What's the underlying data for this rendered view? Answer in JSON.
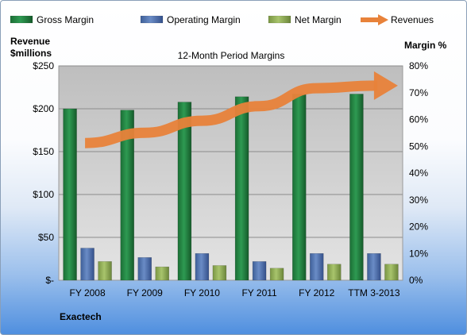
{
  "chart_data": {
    "type": "bar",
    "title": "12-Month Period Margins",
    "company": "Exactech",
    "categories": [
      "FY 2008",
      "FY 2009",
      "FY 2010",
      "FY 2011",
      "FY 2012",
      "TTM 3-2013"
    ],
    "series": [
      {
        "name": "Gross Margin",
        "axis": "right",
        "values": [
          64,
          63.5,
          66.5,
          68.5,
          69.5,
          69.5
        ],
        "color": "#1e7a3c"
      },
      {
        "name": "Operating Margin",
        "axis": "right",
        "values": [
          12,
          8.5,
          10,
          7,
          10,
          10
        ],
        "color": "#4f73b0"
      },
      {
        "name": "Net Margin",
        "axis": "right",
        "values": [
          7,
          5,
          5.5,
          4.5,
          6,
          6
        ],
        "color": "#8fae52"
      }
    ],
    "revenues": {
      "name": "Revenues",
      "color": "#e8823a",
      "trend": [
        160,
        172,
        186,
        203,
        224,
        227
      ]
    },
    "left_axis": {
      "label_line1": "Revenue",
      "label_line2": "$millions",
      "ticks": [
        "$-",
        "$50",
        "$100",
        "$150",
        "$200",
        "$250"
      ],
      "min": 0,
      "max": 250
    },
    "right_axis": {
      "label": "Margin %",
      "ticks": [
        "0%",
        "10%",
        "20%",
        "30%",
        "40%",
        "50%",
        "60%",
        "70%",
        "80%"
      ],
      "min": 0,
      "max": 80
    },
    "legend_placement": "top",
    "grid": true
  }
}
